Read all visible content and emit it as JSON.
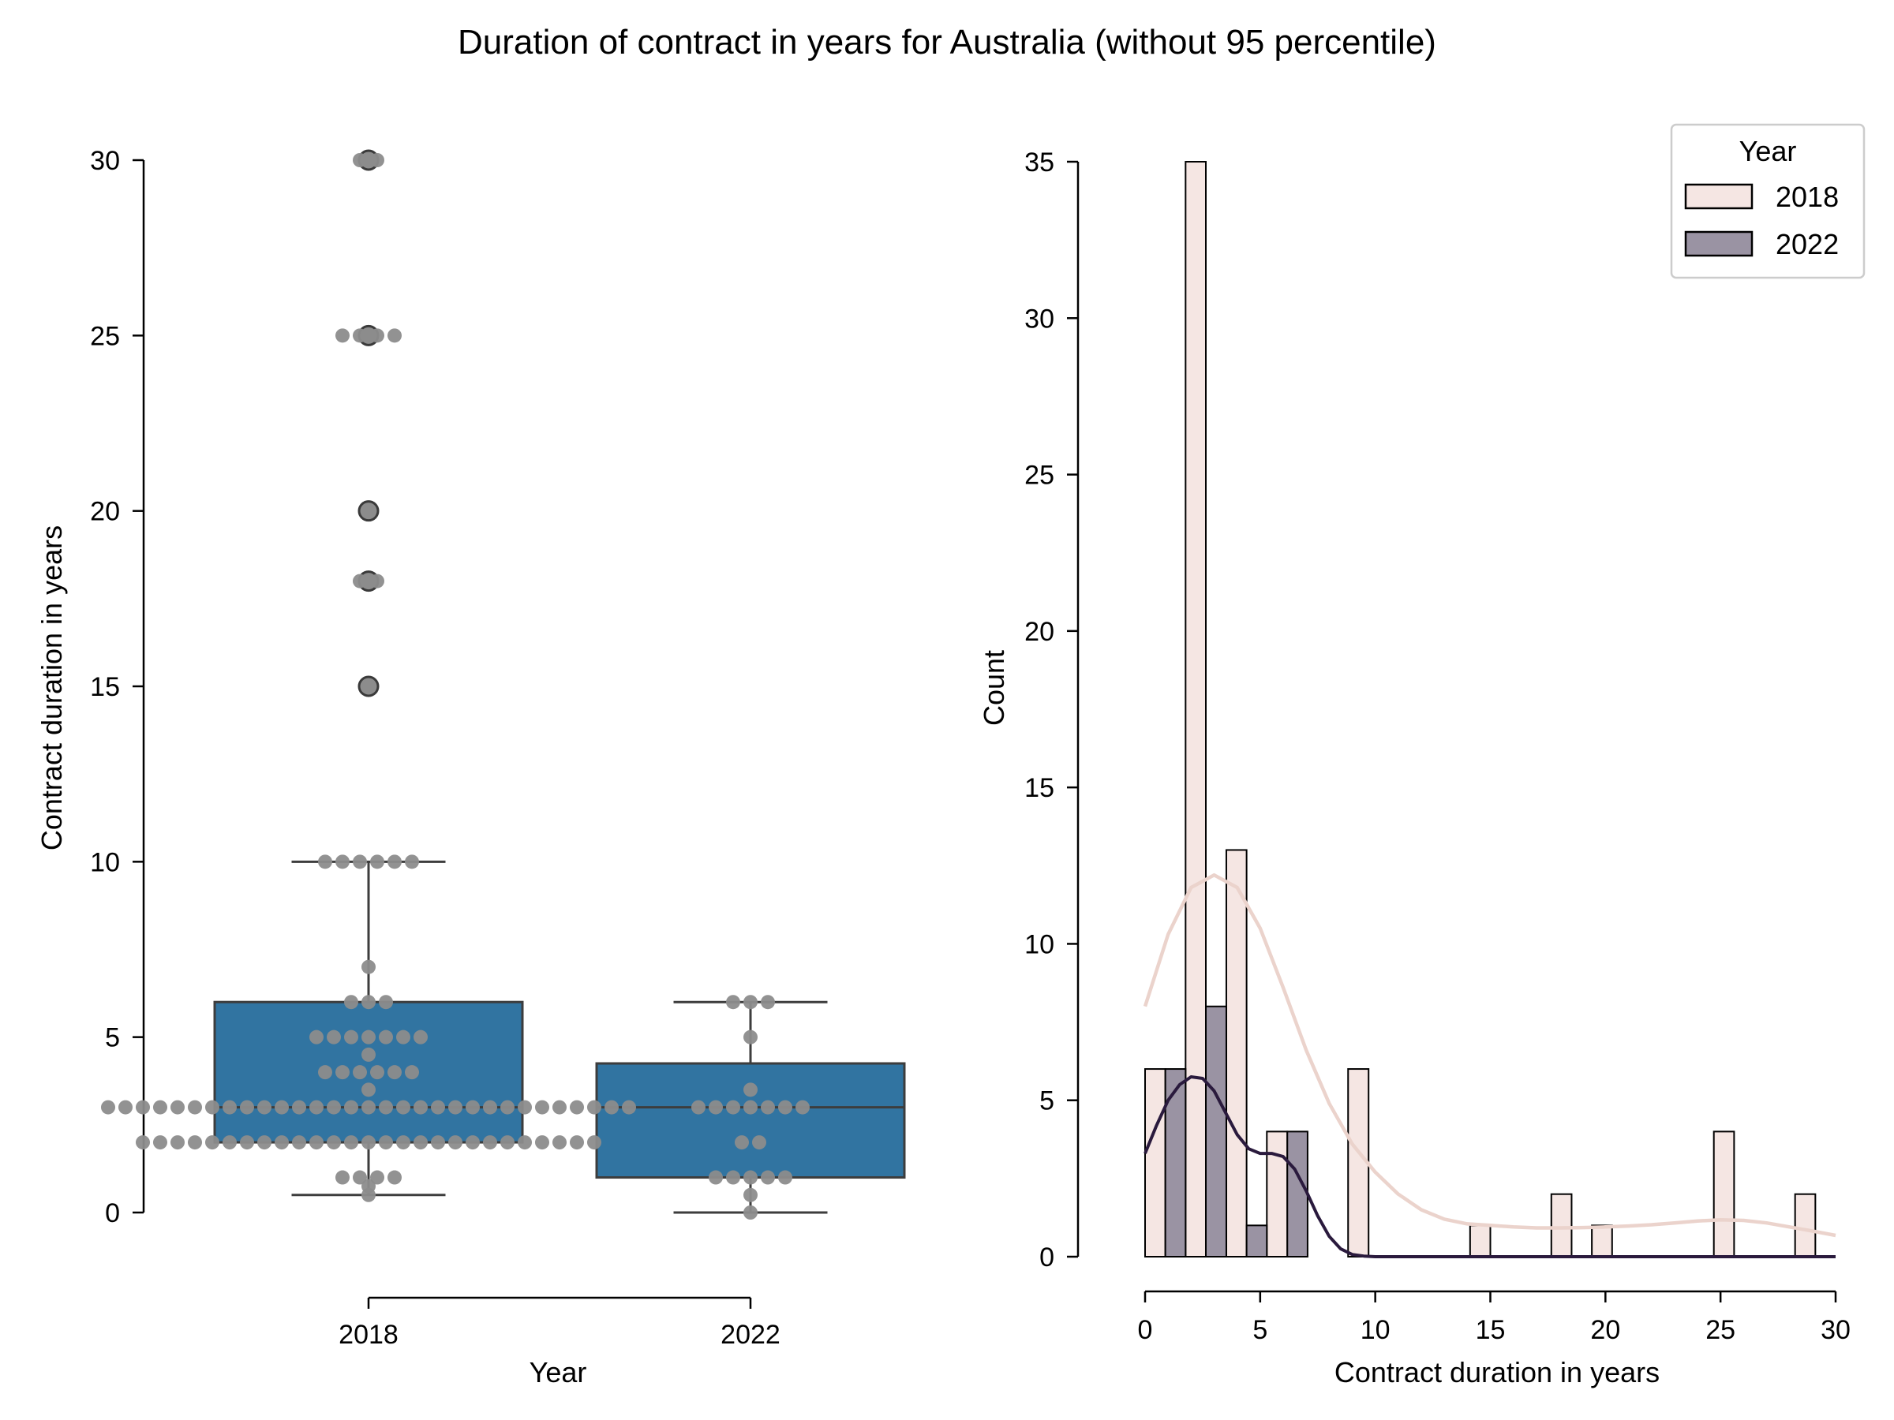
{
  "figure": {
    "title": "Duration of contract in years for Australia (without 95 percentile)"
  },
  "colors": {
    "box_fill": "#3174a1",
    "box_edge": "#3d3d3d",
    "swarm_point": "#8c8c8c",
    "outlier_fill": "#8c8c8c",
    "hist_2018": "#f5e6e3",
    "hist_2022": "#9a93a3",
    "kde_2018": "#ebd3cc",
    "kde_2022": "#2a1a3d",
    "axis": "#000000"
  },
  "chart_data": [
    {
      "type": "box",
      "xlabel": "Year",
      "ylabel": "Contract duration in years",
      "categories": [
        "2018",
        "2022"
      ],
      "ylim": [
        0,
        30
      ],
      "yticks": [
        0,
        5,
        10,
        15,
        20,
        25,
        30
      ],
      "boxes": [
        {
          "category": "2018",
          "q1": 2,
          "median": 3,
          "q3": 6,
          "whisker_low": 0.5,
          "whisker_high": 10,
          "outliers": [
            15,
            18,
            20,
            25,
            30
          ]
        },
        {
          "category": "2022",
          "q1": 1,
          "median": 3,
          "q3": 4.25,
          "whisker_low": 0,
          "whisker_high": 6,
          "outliers": []
        }
      ],
      "swarm": [
        {
          "category": "2018",
          "values": [
            0.5,
            0.75,
            1,
            1,
            1,
            1,
            2,
            2,
            2,
            2,
            2,
            2,
            2,
            2,
            2,
            2,
            2,
            2,
            2,
            2,
            2,
            2,
            2,
            2,
            2,
            2,
            2,
            2,
            2,
            2,
            2,
            2,
            2,
            3,
            3,
            3,
            3,
            3,
            3,
            3,
            3,
            3,
            3,
            3,
            3,
            3,
            3,
            3,
            3,
            3,
            3,
            3,
            3,
            3,
            3,
            3,
            3,
            3,
            3,
            3,
            3,
            3,
            3,
            3,
            3.5,
            4,
            4,
            4,
            4,
            4,
            4,
            4.5,
            5,
            5,
            5,
            5,
            5,
            5,
            5,
            6,
            6,
            6,
            7,
            10,
            10,
            10,
            10,
            10,
            10,
            15,
            18,
            18,
            20,
            25,
            25,
            25,
            25,
            30,
            30
          ]
        },
        {
          "category": "2022",
          "values": [
            0,
            0.5,
            1,
            1,
            1,
            1,
            1,
            2,
            2,
            3,
            3,
            3,
            3,
            3,
            3,
            3,
            3.5,
            5,
            6,
            6,
            6
          ]
        }
      ]
    },
    {
      "type": "histogram",
      "xlabel": "Contract duration in years",
      "ylabel": "Count",
      "xlim": [
        0,
        30
      ],
      "ylim": [
        0,
        35
      ],
      "xticks": [
        0,
        5,
        10,
        15,
        20,
        25,
        30
      ],
      "yticks": [
        0,
        5,
        10,
        15,
        20,
        25,
        30,
        35
      ],
      "legend": {
        "title": "Year",
        "position": "top-right",
        "entries": [
          "2018",
          "2022"
        ]
      },
      "series": [
        {
          "name": "2018",
          "bars": [
            {
              "x0": 0,
              "x1": 0.88,
              "count": 6
            },
            {
              "x0": 1.76,
              "x1": 2.64,
              "count": 35
            },
            {
              "x0": 3.53,
              "x1": 4.41,
              "count": 13
            },
            {
              "x0": 5.29,
              "x1": 6.18,
              "count": 4
            },
            {
              "x0": 8.82,
              "x1": 9.71,
              "count": 6
            },
            {
              "x0": 14.12,
              "x1": 15.0,
              "count": 1
            },
            {
              "x0": 17.65,
              "x1": 18.53,
              "count": 2
            },
            {
              "x0": 19.41,
              "x1": 20.29,
              "count": 1
            },
            {
              "x0": 24.71,
              "x1": 25.59,
              "count": 4
            },
            {
              "x0": 28.24,
              "x1": 29.12,
              "count": 2
            }
          ],
          "kde": [
            [
              0,
              8.0
            ],
            [
              1,
              10.3
            ],
            [
              2,
              11.8
            ],
            [
              3,
              12.2
            ],
            [
              4,
              11.8
            ],
            [
              5,
              10.5
            ],
            [
              6,
              8.6
            ],
            [
              7,
              6.6
            ],
            [
              8,
              4.9
            ],
            [
              9,
              3.6
            ],
            [
              10,
              2.7
            ],
            [
              11,
              2.0
            ],
            [
              12,
              1.5
            ],
            [
              13,
              1.2
            ],
            [
              14,
              1.05
            ],
            [
              15,
              1.0
            ],
            [
              16,
              0.95
            ],
            [
              17,
              0.92
            ],
            [
              18,
              0.92
            ],
            [
              19,
              0.93
            ],
            [
              20,
              0.95
            ],
            [
              21,
              0.98
            ],
            [
              22,
              1.02
            ],
            [
              23,
              1.08
            ],
            [
              24,
              1.14
            ],
            [
              25,
              1.18
            ],
            [
              26,
              1.16
            ],
            [
              27,
              1.08
            ],
            [
              28,
              0.95
            ],
            [
              29,
              0.82
            ],
            [
              30,
              0.68
            ]
          ]
        },
        {
          "name": "2022",
          "bars": [
            {
              "x0": 0.88,
              "x1": 1.76,
              "count": 6
            },
            {
              "x0": 2.64,
              "x1": 3.53,
              "count": 8
            },
            {
              "x0": 4.41,
              "x1": 5.29,
              "count": 1
            },
            {
              "x0": 6.18,
              "x1": 7.06,
              "count": 4
            }
          ],
          "kde": [
            [
              0,
              3.3
            ],
            [
              0.5,
              4.2
            ],
            [
              1,
              5.0
            ],
            [
              1.5,
              5.5
            ],
            [
              2,
              5.75
            ],
            [
              2.5,
              5.7
            ],
            [
              3,
              5.3
            ],
            [
              3.5,
              4.6
            ],
            [
              4,
              3.9
            ],
            [
              4.5,
              3.45
            ],
            [
              5,
              3.3
            ],
            [
              5.5,
              3.3
            ],
            [
              6,
              3.2
            ],
            [
              6.5,
              2.8
            ],
            [
              7,
              2.1
            ],
            [
              7.5,
              1.3
            ],
            [
              8,
              0.65
            ],
            [
              8.5,
              0.25
            ],
            [
              9,
              0.07
            ],
            [
              9.5,
              0.02
            ],
            [
              10,
              0.0
            ],
            [
              30,
              0.0
            ]
          ]
        }
      ]
    }
  ]
}
